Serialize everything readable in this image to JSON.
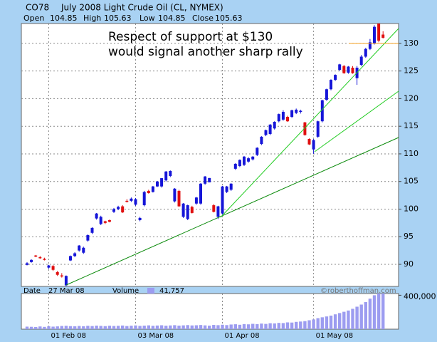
{
  "chart_data": {
    "type": "candlestick",
    "symbol": "CO78",
    "title": "July 2008 Light Crude Oil (CL, NYMEX)",
    "quote": {
      "open_label": "Open",
      "open": 104.85,
      "high_label": "High",
      "high": 105.63,
      "low_label": "Low",
      "low": 104.85,
      "close_label": "Close",
      "close": 105.63
    },
    "status": {
      "date_label": "Date",
      "date": "27 Mar 08",
      "volume_label": "Volume",
      "volume": "41,757",
      "credit": "©roberthoffman.com"
    },
    "annotations": [
      "Respect of support at $130",
      "would signal another sharp rally"
    ],
    "categories": [
      null,
      null,
      null,
      null,
      null,
      "01 Feb 08",
      null,
      null,
      null,
      null,
      null,
      null,
      null,
      null,
      null,
      null,
      null,
      null,
      null,
      null,
      null,
      null,
      null,
      null,
      null,
      "03 Mar 08",
      null,
      null,
      null,
      null,
      null,
      null,
      null,
      null,
      null,
      null,
      null,
      null,
      null,
      null,
      null,
      null,
      null,
      null,
      null,
      "01 Apr 08",
      null,
      null,
      null,
      null,
      null,
      null,
      null,
      null,
      null,
      null,
      null,
      null,
      null,
      null,
      null,
      null,
      null,
      null,
      null,
      null,
      "01 May 08",
      null,
      null,
      null,
      null,
      null,
      null,
      null,
      null,
      null,
      null,
      null,
      null,
      null,
      null,
      null,
      null
    ],
    "open": [
      89.9,
      90.4,
      91.6,
      91.3,
      91.0,
      89.4,
      89.7,
      88.6,
      88.0,
      86.2,
      90.7,
      91.5,
      92.5,
      92.1,
      94.3,
      95.7,
      98.3,
      97.3,
      97.8,
      98.0,
      99.5,
      100.0,
      100.5,
      101.5,
      101.5,
      100.8,
      98.0,
      100.7,
      103.3,
      103.1,
      104.1,
      104.1,
      105.2,
      106.0,
      101.4,
      103.3,
      98.6,
      98.2,
      100.4,
      101.0,
      101.0,
      104.6,
      104.85,
      100.7,
      98.6,
      99.2,
      103.1,
      103.5,
      107.3,
      107.8,
      108.0,
      108.6,
      109.0,
      109.8,
      111.8,
      113.4,
      113.6,
      114.6,
      115.9,
      116.2,
      116.7,
      116.7,
      117.4,
      117.6,
      115.7,
      112.7,
      110.8,
      113.1,
      115.9,
      119.8,
      121.7,
      123.4,
      125.2,
      125.9,
      124.7,
      125.6,
      123.7,
      126.1,
      127.6,
      129.0,
      130.0,
      133.6,
      131.6
    ],
    "high": [
      90.4,
      90.9,
      91.7,
      91.5,
      91.2,
      89.9,
      89.9,
      88.8,
      88.4,
      88.0,
      91.6,
      92.2,
      93.5,
      93.2,
      95.4,
      96.7,
      99.3,
      98.8,
      97.9,
      98.1,
      100.2,
      100.6,
      100.7,
      101.8,
      102.1,
      102.0,
      98.6,
      103.3,
      103.5,
      104.2,
      105.1,
      105.6,
      106.9,
      107.0,
      103.8,
      103.5,
      101.1,
      100.8,
      100.6,
      102.2,
      104.7,
      106.0,
      105.63,
      100.9,
      100.6,
      104.2,
      104.2,
      104.7,
      108.3,
      109.0,
      109.6,
      109.4,
      109.6,
      111.2,
      113.2,
      114.4,
      115.4,
      115.9,
      117.3,
      117.9,
      116.9,
      118.0,
      118.2,
      118.0,
      115.8,
      112.8,
      112.7,
      116.0,
      119.8,
      121.8,
      123.5,
      124.4,
      126.3,
      126.1,
      125.9,
      125.9,
      125.9,
      127.9,
      129.2,
      130.8,
      133.3,
      133.6,
      132.2
    ],
    "low": [
      89.8,
      90.3,
      91.3,
      91.0,
      90.7,
      89.2,
      88.8,
      87.9,
      87.6,
      86.0,
      90.6,
      91.3,
      92.3,
      91.9,
      94.1,
      95.5,
      98.1,
      97.1,
      97.3,
      97.6,
      99.3,
      99.8,
      99.3,
      101.2,
      101.3,
      100.6,
      97.8,
      100.5,
      102.8,
      103.0,
      104.0,
      103.9,
      105.0,
      105.8,
      101.2,
      100.4,
      98.4,
      98.0,
      99.2,
      100.8,
      100.8,
      104.4,
      104.85,
      99.4,
      98.2,
      99.0,
      102.9,
      103.3,
      107.1,
      107.6,
      107.8,
      108.4,
      108.8,
      109.6,
      111.6,
      113.2,
      113.4,
      114.4,
      115.7,
      116.0,
      115.8,
      116.5,
      117.2,
      117.3,
      113.3,
      111.6,
      110.0,
      112.9,
      115.7,
      119.6,
      121.5,
      123.2,
      125.0,
      124.5,
      124.5,
      124.5,
      122.5,
      125.9,
      127.4,
      128.8,
      129.8,
      130.2,
      130.9
    ],
    "close": [
      90.2,
      90.8,
      91.4,
      91.1,
      90.9,
      89.8,
      89.0,
      88.1,
      87.8,
      87.9,
      91.5,
      92.0,
      93.4,
      93.0,
      95.3,
      96.6,
      99.2,
      98.6,
      97.5,
      97.7,
      100.0,
      100.4,
      99.4,
      101.4,
      101.9,
      101.8,
      98.4,
      103.1,
      102.9,
      104.1,
      105.0,
      105.6,
      106.8,
      106.9,
      103.7,
      100.5,
      101.0,
      100.7,
      99.3,
      102.1,
      104.6,
      105.9,
      105.63,
      99.5,
      100.5,
      104.1,
      104.1,
      104.6,
      108.2,
      108.9,
      109.5,
      109.2,
      109.5,
      111.1,
      113.1,
      114.3,
      115.3,
      115.8,
      117.2,
      117.6,
      115.9,
      117.9,
      118.0,
      117.8,
      113.4,
      111.7,
      112.5,
      115.9,
      119.7,
      121.7,
      123.4,
      124.3,
      126.2,
      124.6,
      125.8,
      124.6,
      125.6,
      127.6,
      129.0,
      130.2,
      133.0,
      130.5,
      131.0
    ],
    "volume": [
      30000,
      28000,
      25000,
      32000,
      27000,
      35000,
      30000,
      33000,
      38000,
      40000,
      36000,
      34000,
      38000,
      35000,
      40000,
      37000,
      42000,
      39000,
      36000,
      41000,
      38000,
      40000,
      43000,
      37000,
      41000,
      44000,
      39000,
      42000,
      45000,
      40000,
      43000,
      46000,
      41000,
      44000,
      47000,
      42000,
      45000,
      48000,
      44000,
      46000,
      49000,
      45000,
      41757,
      50000,
      47000,
      52000,
      48000,
      55000,
      58000,
      52000,
      60000,
      57000,
      63000,
      60000,
      66000,
      62000,
      70000,
      68000,
      74000,
      72000,
      80000,
      78000,
      86000,
      90000,
      95000,
      105000,
      115000,
      130000,
      140000,
      150000,
      160000,
      175000,
      190000,
      205000,
      220000,
      240000,
      265000,
      290000,
      320000,
      360000,
      400000,
      420000,
      420000
    ],
    "up_color": "#1515d8",
    "down_color": "#e01010",
    "volume_color": "#9c9cf0",
    "annotation_color": "#f5a020",
    "ylim": [
      86,
      133.6
    ],
    "yticks": [
      90,
      95,
      100,
      105,
      110,
      115,
      120,
      125,
      130
    ],
    "volume_ylim": [
      0,
      420000
    ],
    "volume_yticks": [
      {
        "value": 400000,
        "label": "400,000"
      }
    ],
    "grid": true
  }
}
